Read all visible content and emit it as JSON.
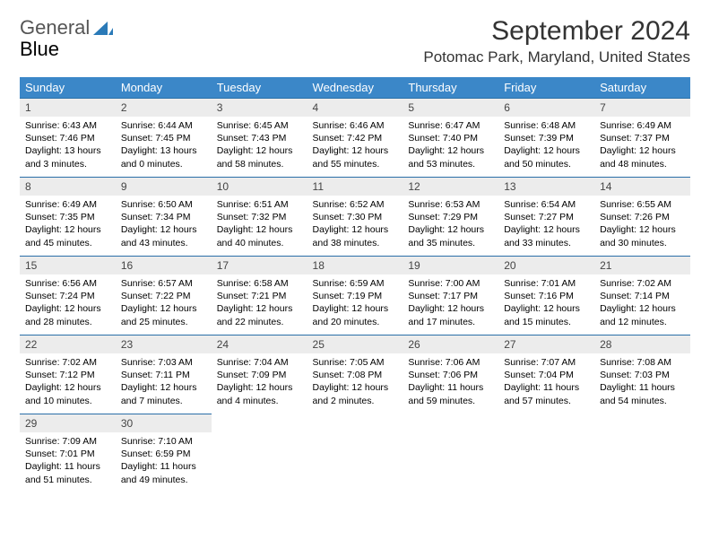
{
  "brand": {
    "word1": "General",
    "word2": "Blue",
    "accent": "#2a7ab8"
  },
  "title": {
    "month": "September 2024",
    "location": "Potomac Park, Maryland, United States"
  },
  "colors": {
    "header_bg": "#3b87c8",
    "header_fg": "#ffffff",
    "daynum_bg": "#ececec",
    "daynum_border": "#2a6fa8",
    "text": "#000000"
  },
  "weekdays": [
    "Sunday",
    "Monday",
    "Tuesday",
    "Wednesday",
    "Thursday",
    "Friday",
    "Saturday"
  ],
  "days": [
    {
      "n": "1",
      "sr": "Sunrise: 6:43 AM",
      "ss": "Sunset: 7:46 PM",
      "dl": "Daylight: 13 hours and 3 minutes."
    },
    {
      "n": "2",
      "sr": "Sunrise: 6:44 AM",
      "ss": "Sunset: 7:45 PM",
      "dl": "Daylight: 13 hours and 0 minutes."
    },
    {
      "n": "3",
      "sr": "Sunrise: 6:45 AM",
      "ss": "Sunset: 7:43 PM",
      "dl": "Daylight: 12 hours and 58 minutes."
    },
    {
      "n": "4",
      "sr": "Sunrise: 6:46 AM",
      "ss": "Sunset: 7:42 PM",
      "dl": "Daylight: 12 hours and 55 minutes."
    },
    {
      "n": "5",
      "sr": "Sunrise: 6:47 AM",
      "ss": "Sunset: 7:40 PM",
      "dl": "Daylight: 12 hours and 53 minutes."
    },
    {
      "n": "6",
      "sr": "Sunrise: 6:48 AM",
      "ss": "Sunset: 7:39 PM",
      "dl": "Daylight: 12 hours and 50 minutes."
    },
    {
      "n": "7",
      "sr": "Sunrise: 6:49 AM",
      "ss": "Sunset: 7:37 PM",
      "dl": "Daylight: 12 hours and 48 minutes."
    },
    {
      "n": "8",
      "sr": "Sunrise: 6:49 AM",
      "ss": "Sunset: 7:35 PM",
      "dl": "Daylight: 12 hours and 45 minutes."
    },
    {
      "n": "9",
      "sr": "Sunrise: 6:50 AM",
      "ss": "Sunset: 7:34 PM",
      "dl": "Daylight: 12 hours and 43 minutes."
    },
    {
      "n": "10",
      "sr": "Sunrise: 6:51 AM",
      "ss": "Sunset: 7:32 PM",
      "dl": "Daylight: 12 hours and 40 minutes."
    },
    {
      "n": "11",
      "sr": "Sunrise: 6:52 AM",
      "ss": "Sunset: 7:30 PM",
      "dl": "Daylight: 12 hours and 38 minutes."
    },
    {
      "n": "12",
      "sr": "Sunrise: 6:53 AM",
      "ss": "Sunset: 7:29 PM",
      "dl": "Daylight: 12 hours and 35 minutes."
    },
    {
      "n": "13",
      "sr": "Sunrise: 6:54 AM",
      "ss": "Sunset: 7:27 PM",
      "dl": "Daylight: 12 hours and 33 minutes."
    },
    {
      "n": "14",
      "sr": "Sunrise: 6:55 AM",
      "ss": "Sunset: 7:26 PM",
      "dl": "Daylight: 12 hours and 30 minutes."
    },
    {
      "n": "15",
      "sr": "Sunrise: 6:56 AM",
      "ss": "Sunset: 7:24 PM",
      "dl": "Daylight: 12 hours and 28 minutes."
    },
    {
      "n": "16",
      "sr": "Sunrise: 6:57 AM",
      "ss": "Sunset: 7:22 PM",
      "dl": "Daylight: 12 hours and 25 minutes."
    },
    {
      "n": "17",
      "sr": "Sunrise: 6:58 AM",
      "ss": "Sunset: 7:21 PM",
      "dl": "Daylight: 12 hours and 22 minutes."
    },
    {
      "n": "18",
      "sr": "Sunrise: 6:59 AM",
      "ss": "Sunset: 7:19 PM",
      "dl": "Daylight: 12 hours and 20 minutes."
    },
    {
      "n": "19",
      "sr": "Sunrise: 7:00 AM",
      "ss": "Sunset: 7:17 PM",
      "dl": "Daylight: 12 hours and 17 minutes."
    },
    {
      "n": "20",
      "sr": "Sunrise: 7:01 AM",
      "ss": "Sunset: 7:16 PM",
      "dl": "Daylight: 12 hours and 15 minutes."
    },
    {
      "n": "21",
      "sr": "Sunrise: 7:02 AM",
      "ss": "Sunset: 7:14 PM",
      "dl": "Daylight: 12 hours and 12 minutes."
    },
    {
      "n": "22",
      "sr": "Sunrise: 7:02 AM",
      "ss": "Sunset: 7:12 PM",
      "dl": "Daylight: 12 hours and 10 minutes."
    },
    {
      "n": "23",
      "sr": "Sunrise: 7:03 AM",
      "ss": "Sunset: 7:11 PM",
      "dl": "Daylight: 12 hours and 7 minutes."
    },
    {
      "n": "24",
      "sr": "Sunrise: 7:04 AM",
      "ss": "Sunset: 7:09 PM",
      "dl": "Daylight: 12 hours and 4 minutes."
    },
    {
      "n": "25",
      "sr": "Sunrise: 7:05 AM",
      "ss": "Sunset: 7:08 PM",
      "dl": "Daylight: 12 hours and 2 minutes."
    },
    {
      "n": "26",
      "sr": "Sunrise: 7:06 AM",
      "ss": "Sunset: 7:06 PM",
      "dl": "Daylight: 11 hours and 59 minutes."
    },
    {
      "n": "27",
      "sr": "Sunrise: 7:07 AM",
      "ss": "Sunset: 7:04 PM",
      "dl": "Daylight: 11 hours and 57 minutes."
    },
    {
      "n": "28",
      "sr": "Sunrise: 7:08 AM",
      "ss": "Sunset: 7:03 PM",
      "dl": "Daylight: 11 hours and 54 minutes."
    },
    {
      "n": "29",
      "sr": "Sunrise: 7:09 AM",
      "ss": "Sunset: 7:01 PM",
      "dl": "Daylight: 11 hours and 51 minutes."
    },
    {
      "n": "30",
      "sr": "Sunrise: 7:10 AM",
      "ss": "Sunset: 6:59 PM",
      "dl": "Daylight: 11 hours and 49 minutes."
    }
  ],
  "grid": {
    "start_offset": 0,
    "total_cells": 35
  }
}
